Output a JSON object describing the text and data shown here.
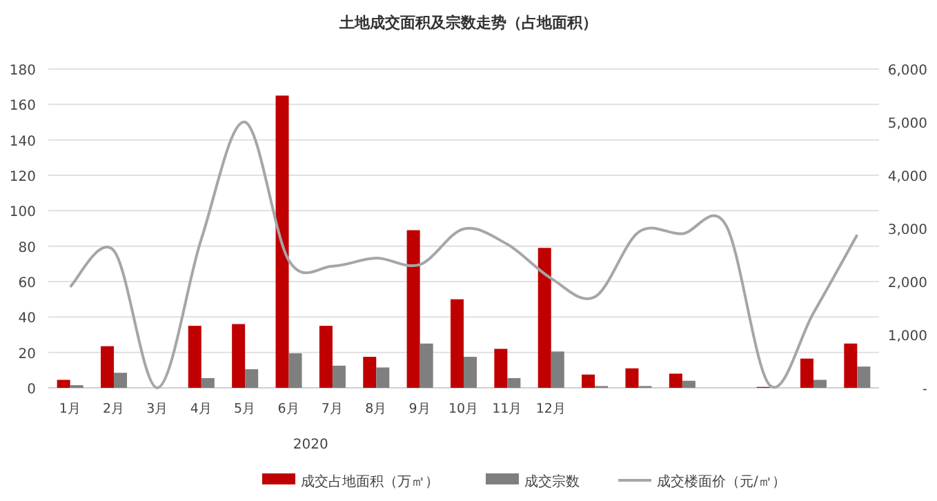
{
  "chart_data": {
    "type": "bar",
    "title": "土地成交面积及宗数走势（占地面积）",
    "categories": [
      "1月",
      "2月",
      "3月",
      "4月",
      "5月",
      "6月",
      "7月",
      "8月",
      "9月",
      "10月",
      "11月",
      "12月",
      null,
      null,
      null,
      null,
      null,
      null,
      null
    ],
    "series": [
      {
        "name": "成交占地面积（万㎡）",
        "color": "#c00000",
        "values": [
          4.5,
          23.5,
          0,
          35,
          36,
          165,
          35,
          17.5,
          89,
          50,
          22,
          79,
          7.5,
          11,
          8,
          0,
          0.5,
          16.5,
          25
        ]
      },
      {
        "name": "成交宗数",
        "color": "#7f7f7f",
        "values": [
          1.5,
          8.5,
          0,
          5.5,
          10.5,
          19.5,
          12.5,
          11.5,
          25,
          17.5,
          5.5,
          20.5,
          1,
          1,
          4,
          0,
          null,
          4.5,
          12
        ]
      },
      {
        "name": "成交楼面价（元/㎡）",
        "color": "#a6a6a6",
        "type": "line",
        "axis": "y2",
        "values": [
          1900,
          2580,
          0,
          2800,
          5000,
          2400,
          2290,
          2440,
          2320,
          2990,
          2700,
          2060,
          1710,
          2930,
          2900,
          3060,
          50,
          1410,
          2880
        ]
      }
    ],
    "ylim": [
      0,
      180
    ],
    "yticks": [
      0,
      20,
      40,
      60,
      80,
      100,
      120,
      140,
      160,
      180
    ],
    "y2lim": [
      0,
      6000
    ],
    "y2ticks": [
      {
        "value": 0,
        "label": "-"
      },
      {
        "value": 1000,
        "label": "1,000"
      },
      {
        "value": 2000,
        "label": "2,000"
      },
      {
        "value": 3000,
        "label": "3,000"
      },
      {
        "value": 4000,
        "label": "4,000"
      },
      {
        "value": 5000,
        "label": "5,000"
      },
      {
        "value": 6000,
        "label": "6,000"
      }
    ],
    "annotations": [
      "2020"
    ],
    "grid": "y",
    "legend": "bottom"
  }
}
